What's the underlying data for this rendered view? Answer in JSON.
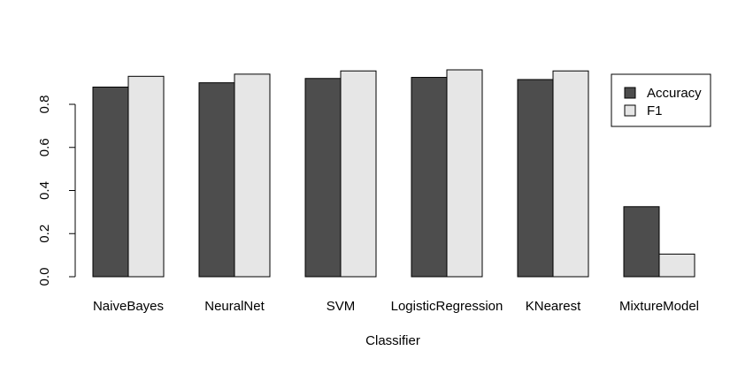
{
  "chart_data": {
    "type": "bar",
    "title": "",
    "xlabel": "Classifier",
    "ylabel": "",
    "categories": [
      "NaiveBayes",
      "NeuralNet",
      "SVM",
      "LogisticRegression",
      "KNearest",
      "MixtureModel"
    ],
    "series": [
      {
        "name": "Accuracy",
        "color": "#4d4d4d",
        "values": [
          0.88,
          0.9,
          0.92,
          0.925,
          0.915,
          0.325
        ]
      },
      {
        "name": "F1",
        "color": "#e6e6e6",
        "values": [
          0.93,
          0.94,
          0.955,
          0.96,
          0.955,
          0.105
        ]
      }
    ],
    "ylim": [
      0,
      0.96
    ],
    "yticks": [
      0.0,
      0.2,
      0.4,
      0.6,
      0.8
    ],
    "ytick_labels": [
      "0.0",
      "0.2",
      "0.4",
      "0.6",
      "0.8"
    ],
    "grid": false,
    "legend_position": "top-right"
  }
}
